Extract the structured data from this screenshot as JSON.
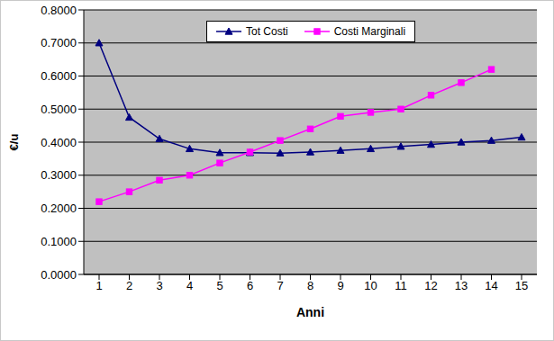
{
  "chart_data": {
    "type": "line",
    "x_label": "Anni",
    "y_label": "€/u",
    "categories": [
      "1",
      "2",
      "3",
      "4",
      "5",
      "6",
      "7",
      "8",
      "9",
      "10",
      "11",
      "12",
      "13",
      "14",
      "15"
    ],
    "series": [
      {
        "name": "Tot Costi",
        "color": "#000080",
        "marker": "triangle",
        "values": [
          0.7,
          0.475,
          0.41,
          0.38,
          0.368,
          0.368,
          0.367,
          0.37,
          0.375,
          0.38,
          0.387,
          0.393,
          0.4,
          0.405,
          0.415
        ]
      },
      {
        "name": "Costi Marginali",
        "color": "#ff00ff",
        "marker": "square",
        "values": [
          0.22,
          0.25,
          0.285,
          0.3,
          0.337,
          0.37,
          0.405,
          0.44,
          0.478,
          0.49,
          0.5,
          0.542,
          0.58,
          0.62,
          null
        ]
      }
    ],
    "ylim": [
      0,
      0.8
    ],
    "yticks": [
      {
        "value": 0,
        "label": "0.0000"
      },
      {
        "value": 0.1,
        "label": "0.1000"
      },
      {
        "value": 0.2,
        "label": "0.2000"
      },
      {
        "value": 0.3,
        "label": "0.3000"
      },
      {
        "value": 0.4,
        "label": "0.4000"
      },
      {
        "value": 0.5,
        "label": "0.5000"
      },
      {
        "value": 0.6,
        "label": "0.6000"
      },
      {
        "value": 0.7,
        "label": "0.7000"
      },
      {
        "value": 0.8,
        "label": "0.8000"
      }
    ],
    "grid": true,
    "legend": "top"
  }
}
